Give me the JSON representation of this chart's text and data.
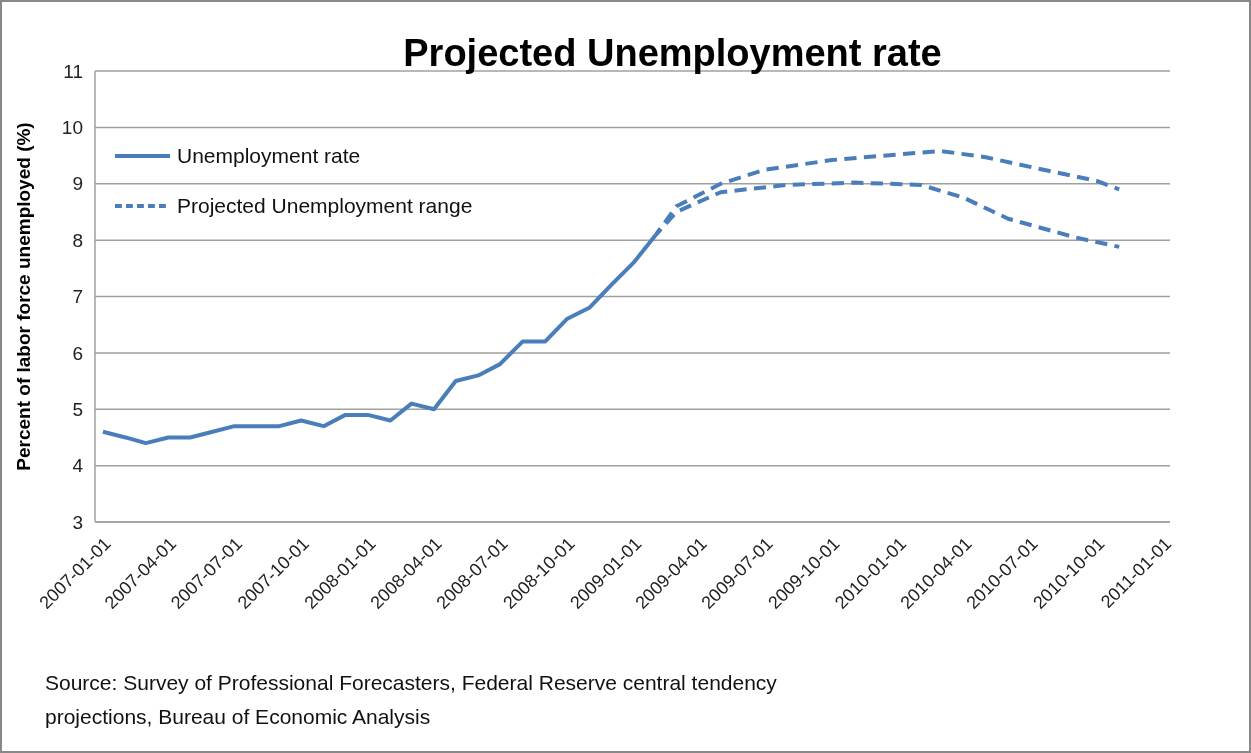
{
  "chart_data": {
    "type": "line",
    "title": "Projected Unemployment rate",
    "ylabel": "Percent of labor force unemployed (%)",
    "annotations": [
      "Source:  Survey of Professional Forecasters,  Federal Reserve central tendency projections, Bureau of Economic Analysis"
    ],
    "xlim": [
      "2006-12-21",
      "2011-01-10"
    ],
    "xticks": [
      "2007-01-01",
      "2007-04-01",
      "2007-07-01",
      "2007-10-01",
      "2008-01-01",
      "2008-04-01",
      "2008-07-01",
      "2008-10-01",
      "2009-01-01",
      "2009-04-01",
      "2009-07-01",
      "2009-10-01",
      "2010-01-01",
      "2010-04-01",
      "2010-07-01",
      "2010-10-01",
      "2011-01-01"
    ],
    "ylim": [
      3,
      11
    ],
    "yticks": [
      3,
      4,
      5,
      6,
      7,
      8,
      9,
      10,
      11
    ],
    "grid": "y",
    "legend": "top left",
    "marker": "none",
    "series": [
      {
        "name": "Unemployment rate",
        "color": "#4a7ebb",
        "line_style": "solid",
        "x": [
          "2007-01",
          "2007-02",
          "2007-03",
          "2007-04",
          "2007-05",
          "2007-06",
          "2007-07",
          "2007-08",
          "2007-09",
          "2007-10",
          "2007-11",
          "2007-12",
          "2008-01",
          "2008-02",
          "2008-03",
          "2008-04",
          "2008-05",
          "2008-06",
          "2008-07",
          "2008-08",
          "2008-09",
          "2008-10",
          "2008-11",
          "2008-12",
          "2009-01",
          "2009-02"
        ],
        "values": [
          4.6,
          4.5,
          4.4,
          4.5,
          4.5,
          4.6,
          4.7,
          4.7,
          4.7,
          4.8,
          4.7,
          4.9,
          4.9,
          4.8,
          5.1,
          5.0,
          5.5,
          5.6,
          5.8,
          6.2,
          6.2,
          6.6,
          6.8,
          7.2,
          7.6,
          8.1
        ]
      },
      {
        "name": "Projected Unemployment range",
        "color": "#4a7ebb",
        "line_style": "dashed",
        "x": [
          "2009-02",
          "2009-03",
          "2009-05",
          "2009-07",
          "2009-10",
          "2010-01",
          "2010-03",
          "2010-05",
          "2010-07",
          "2010-10",
          "2010-11"
        ],
        "values": [
          8.1,
          8.6,
          9.0,
          9.25,
          9.42,
          9.52,
          9.58,
          9.47,
          9.3,
          9.05,
          8.9
        ]
      },
      {
        "color": "#4a7ebb",
        "line_style": "dashed",
        "x": [
          "2009-02",
          "2009-03",
          "2009-05",
          "2009-08",
          "2009-11",
          "2010-02",
          "2010-04",
          "2010-06",
          "2010-09",
          "2010-11"
        ],
        "values": [
          8.1,
          8.5,
          8.85,
          8.98,
          9.02,
          8.98,
          8.75,
          8.38,
          8.05,
          7.88
        ]
      }
    ]
  }
}
